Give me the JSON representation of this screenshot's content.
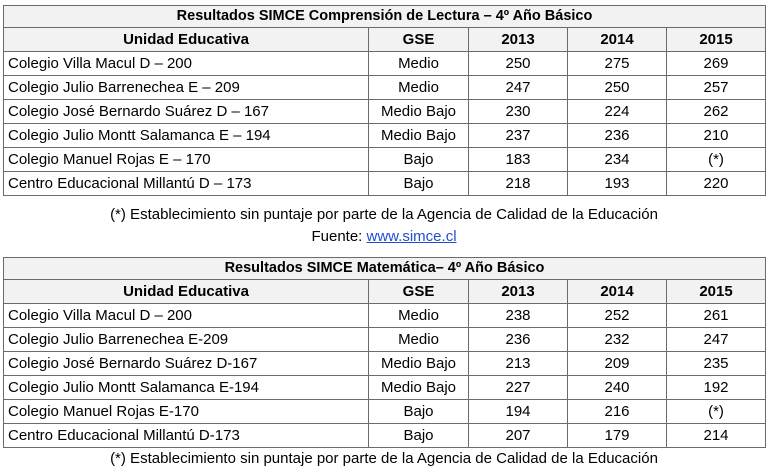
{
  "reading": {
    "title": "Resultados SIMCE Comprensión de Lectura – 4º Año Básico",
    "headers": [
      "Unidad Educativa",
      "GSE",
      "2013",
      "2014",
      "2015"
    ],
    "rows": [
      [
        "Colegio Villa Macul D – 200",
        "Medio",
        "250",
        "275",
        "269"
      ],
      [
        "Colegio Julio Barrenechea E – 209",
        "Medio",
        "247",
        "250",
        "257"
      ],
      [
        "Colegio José Bernardo Suárez D – 167",
        "Medio Bajo",
        "230",
        "224",
        "262"
      ],
      [
        "Colegio Julio Montt Salamanca E – 194",
        "Medio Bajo",
        "237",
        "236",
        "210"
      ],
      [
        "Colegio Manuel Rojas E – 170",
        "Bajo",
        "183",
        "234",
        "(*)"
      ],
      [
        "Centro Educacional Millantú D – 173",
        "Bajo",
        "218",
        "193",
        "220"
      ]
    ],
    "note": "(*) Establecimiento sin puntaje por parte de la Agencia de Calidad de la Educación",
    "source_label": "Fuente: ",
    "source_link": "www.simce.cl"
  },
  "math": {
    "title": "Resultados SIMCE Matemática– 4º Año Básico",
    "headers": [
      "Unidad Educativa",
      "GSE",
      "2013",
      "2014",
      "2015"
    ],
    "rows": [
      [
        "Colegio Villa Macul D – 200",
        "Medio",
        "238",
        "252",
        "261"
      ],
      [
        "Colegio Julio Barrenechea E-209",
        "Medio",
        "236",
        "232",
        "247"
      ],
      [
        "Colegio José Bernardo Suárez D-167",
        "Medio Bajo",
        "213",
        "209",
        "235"
      ],
      [
        "Colegio Julio Montt Salamanca E-194",
        "Medio Bajo",
        "227",
        "240",
        "192"
      ],
      [
        "Colegio Manuel Rojas E-170",
        "Bajo",
        "194",
        "216",
        "(*)"
      ],
      [
        "Centro Educacional Millantú D-173",
        "Bajo",
        "207",
        "179",
        "214"
      ]
    ],
    "note": "(*) Establecimiento sin puntaje por parte de la Agencia de Calidad de la Educación"
  },
  "colors": {
    "link": "#1f4fd1",
    "border": "#6b6b6b"
  }
}
